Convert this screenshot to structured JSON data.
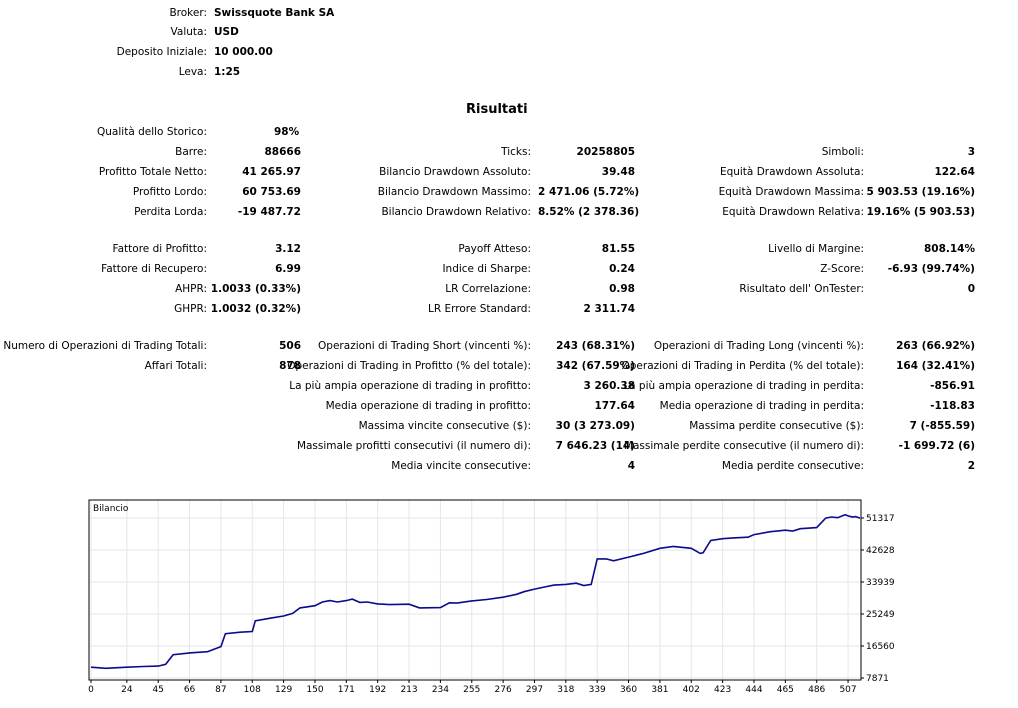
{
  "header": [
    {
      "label": "Broker:",
      "value": "Swissquote Bank SA"
    },
    {
      "label": "Valuta:",
      "value": "USD"
    },
    {
      "label": "Deposito Iniziale:",
      "value": "10 000.00"
    },
    {
      "label": "Leva:",
      "value": "1:25"
    }
  ],
  "title": "Risultati",
  "results": [
    {
      "label": "Qualità dello Storico:",
      "value": "98%"
    },
    {
      "label": "Barre:",
      "value": "88666"
    },
    {
      "label": "Profitto Totale Netto:",
      "value": "41 265.97"
    },
    {
      "label": "Profitto Lordo:",
      "value": "60 753.69"
    },
    {
      "label": "Perdita Lorda:",
      "value": "-19 487.72"
    },
    {
      "label": "Fattore di Profitto:",
      "value": "3.12"
    },
    {
      "label": "Fattore di Recupero:",
      "value": "6.99"
    },
    {
      "label": "AHPR:",
      "value": "1.0033 (0.33%)"
    },
    {
      "label": "GHPR:",
      "value": "1.0032 (0.32%)"
    },
    {
      "label": "Numero di Operazioni di Trading Totali:",
      "value": "506"
    },
    {
      "label": "Affari Totali:",
      "value": "878"
    },
    {
      "label": "Ticks:",
      "value": "20258805"
    },
    {
      "label": "Bilancio Drawdown Assoluto:",
      "value": "39.48"
    },
    {
      "label": "Bilancio Drawdown Massimo:",
      "value": "2 471.06 (5.72%)"
    },
    {
      "label": "Bilancio Drawdown Relativo:",
      "value": "8.52% (2 378.36)"
    },
    {
      "label": "Payoff Atteso:",
      "value": "81.55"
    },
    {
      "label": "Indice di Sharpe:",
      "value": "0.24"
    },
    {
      "label": "LR Correlazione:",
      "value": "0.98"
    },
    {
      "label": "LR Errore Standard:",
      "value": "2 311.74"
    },
    {
      "label": "Operazioni di Trading Short (vincenti %):",
      "value": "243 (68.31%)"
    },
    {
      "label": "Operazioni di Trading in Profitto (% del totale):",
      "value": "342 (67.59%)"
    },
    {
      "label": "La più ampia operazione di trading in profitto:",
      "value": "3 260.38"
    },
    {
      "label": "Media operazione di trading in profitto:",
      "value": "177.64"
    },
    {
      "label": "Massima vincite consecutive ($):",
      "value": "30 (3 273.09)"
    },
    {
      "label": "Massimale profitti consecutivi (il numero di):",
      "value": "7 646.23 (14)"
    },
    {
      "label": "Media vincite consecutive:",
      "value": "4"
    },
    {
      "label": "Simboli:",
      "value": "3"
    },
    {
      "label": "Equità Drawdown Assoluta:",
      "value": "122.64"
    },
    {
      "label": "Equità Drawdown Massima:",
      "value": "5 903.53 (19.16%)"
    },
    {
      "label": "Equità Drawdown Relativa:",
      "value": "19.16% (5 903.53)"
    },
    {
      "label": "Livello di Margine:",
      "value": "808.14%"
    },
    {
      "label": "Z-Score:",
      "value": "-6.93 (99.74%)"
    },
    {
      "label": "Risultato dell' OnTester:",
      "value": "0"
    },
    {
      "label": "Operazioni di Trading Long (vincenti %):",
      "value": "263 (66.92%)"
    },
    {
      "label": "Operazioni di Trading in Perdita (% del totale):",
      "value": "164 (32.41%)"
    },
    {
      "label": "La più ampia operazione di trading in perdita:",
      "value": "-856.91"
    },
    {
      "label": "Media operazione di trading in perdita:",
      "value": "-118.83"
    },
    {
      "label": "Massima perdite consecutive ($):",
      "value": "7 (-855.59)"
    },
    {
      "label": "Massimale perdite consecutive (il numero di):",
      "value": "-1 699.72 (6)"
    },
    {
      "label": "Media perdite consecutive:",
      "value": "2"
    }
  ],
  "chart_data": {
    "type": "line",
    "title": "Bilancio",
    "line_color": "#0a0a8c",
    "x_ticks": [
      0,
      24,
      45,
      66,
      87,
      108,
      129,
      150,
      171,
      192,
      213,
      234,
      255,
      276,
      297,
      318,
      339,
      360,
      381,
      402,
      423,
      444,
      465,
      486,
      507
    ],
    "y_ticks": [
      7871,
      16560,
      25249,
      33939,
      42628,
      51317
    ],
    "xlim": [
      0,
      515
    ],
    "ylim": [
      7871,
      51317
    ],
    "series": [
      {
        "name": "",
        "x": [
          0,
          10,
          24,
          35,
          45,
          50,
          55,
          66,
          78,
          87,
          90,
          100,
          108,
          110,
          120,
          129,
          135,
          140,
          150,
          155,
          160,
          165,
          171,
          175,
          180,
          185,
          192,
          200,
          213,
          220,
          234,
          240,
          245,
          255,
          265,
          276,
          285,
          290,
          297,
          305,
          310,
          318,
          325,
          330,
          335,
          339,
          345,
          350,
          360,
          370,
          381,
          390,
          402,
          408,
          410,
          415,
          423,
          430,
          440,
          444,
          455,
          465,
          470,
          475,
          486,
          492,
          496,
          500,
          505,
          507,
          510,
          512,
          515
        ],
        "y": [
          10800,
          10500,
          10800,
          11000,
          11100,
          11600,
          14200,
          14700,
          15000,
          16400,
          19900,
          20300,
          20500,
          23400,
          24100,
          24700,
          25400,
          26900,
          27500,
          28500,
          28900,
          28500,
          28900,
          29300,
          28400,
          28500,
          28000,
          27800,
          27900,
          26900,
          27000,
          28300,
          28200,
          28800,
          29200,
          29800,
          30600,
          31300,
          32000,
          32700,
          33100,
          33300,
          33600,
          33000,
          33300,
          40200,
          40200,
          39700,
          40700,
          41700,
          43100,
          43600,
          43100,
          41700,
          41900,
          45200,
          45700,
          45900,
          46100,
          46800,
          47600,
          48000,
          47800,
          48400,
          48700,
          51300,
          51600,
          51400,
          52200,
          51900,
          51600,
          51700,
          51300
        ]
      }
    ]
  }
}
